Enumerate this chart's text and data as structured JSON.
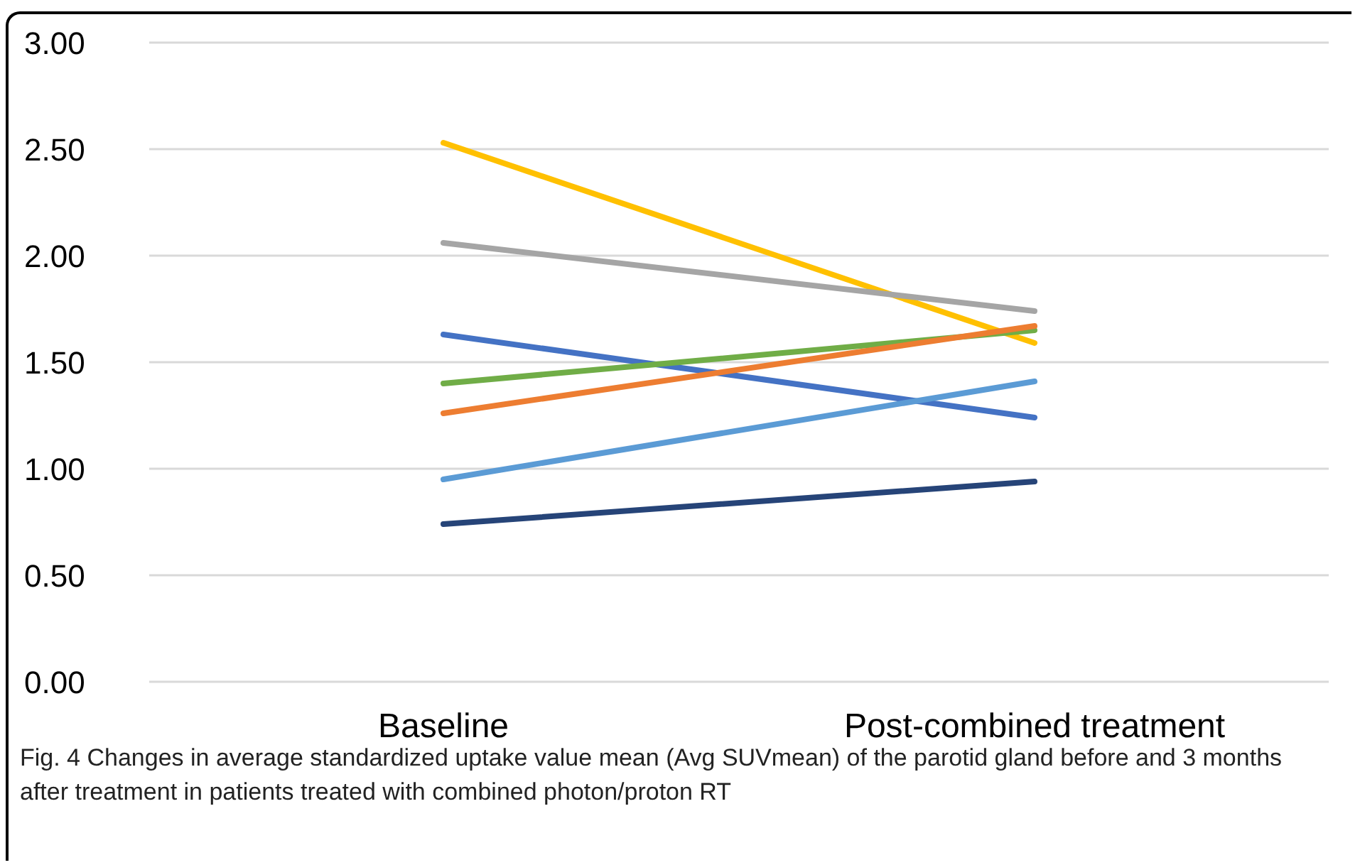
{
  "chart_data": {
    "type": "line",
    "categories": [
      "Baseline",
      "Post-combined treatment"
    ],
    "series": [
      {
        "color": "#ffc000",
        "values": [
          2.53,
          1.59
        ]
      },
      {
        "color": "#a5a5a5",
        "values": [
          2.06,
          1.74
        ]
      },
      {
        "color": "#4472c4",
        "values": [
          1.63,
          1.24
        ]
      },
      {
        "color": "#70ad47",
        "values": [
          1.4,
          1.65
        ]
      },
      {
        "color": "#ed7d31",
        "values": [
          1.26,
          1.67
        ]
      },
      {
        "color": "#5b9bd5",
        "values": [
          0.95,
          1.41
        ]
      },
      {
        "color": "#264478",
        "values": [
          0.74,
          0.94
        ]
      }
    ],
    "ylim": [
      0,
      3
    ],
    "yticks": [
      {
        "value": 0,
        "label": "0.00"
      },
      {
        "value": 0.5,
        "label": "0.50"
      },
      {
        "value": 1,
        "label": "1.00"
      },
      {
        "value": 1.5,
        "label": "1.50"
      },
      {
        "value": 2,
        "label": "2.00"
      },
      {
        "value": 2.5,
        "label": "2.50"
      },
      {
        "value": 3,
        "label": "3.00"
      }
    ],
    "grid": "y",
    "marker": "none",
    "line_style": "solid",
    "annotations": [
      "Fig. 4 Changes in average standardized uptake value mean (Avg SUVmean) of the parotid gland before and 3 months after treatment in patients treated with combined photon/proton RT"
    ]
  }
}
